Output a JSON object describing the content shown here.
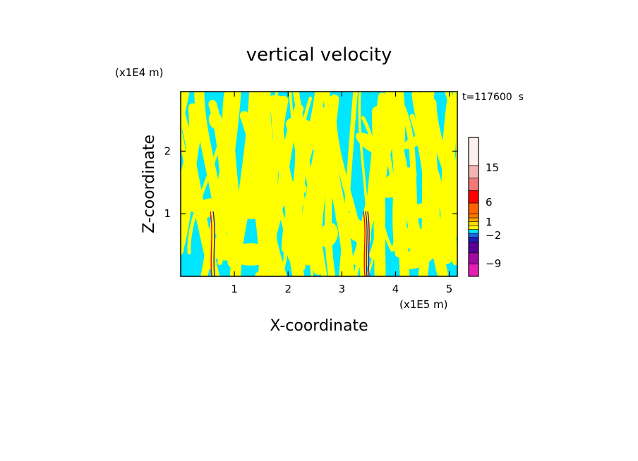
{
  "chart_data": {
    "type": "heatmap",
    "title": "vertical velocity",
    "xlabel": "X-coordinate",
    "ylabel": "Z-coordinate",
    "x_unit": "(x1E5 m)",
    "y_unit": "(x1E4 m)",
    "time_label": "t=117600  s",
    "xlim": [
      0,
      5.15
    ],
    "ylim": [
      0,
      2.95
    ],
    "x_ticks": [
      {
        "value": 1,
        "label": "1"
      },
      {
        "value": 2,
        "label": "2"
      },
      {
        "value": 3,
        "label": "3"
      },
      {
        "value": 4,
        "label": "4"
      },
      {
        "value": 5,
        "label": "5"
      }
    ],
    "y_ticks": [
      {
        "value": 1,
        "label": "1"
      },
      {
        "value": 2,
        "label": "2"
      }
    ],
    "legend_position": "right",
    "colorbar": [
      {
        "color": "#e61eb4"
      },
      {
        "color": "#a00aa0"
      },
      {
        "color": "#5a0096"
      },
      {
        "color": "#1e1eb4"
      },
      {
        "color": "#1e64e6"
      },
      {
        "color": "#00e6ff"
      },
      {
        "color": "#ffff00"
      },
      {
        "color": "#ffdc00"
      },
      {
        "color": "#ffaa00"
      },
      {
        "color": "#ff7800"
      },
      {
        "color": "#ff6400"
      },
      {
        "color": "#ff0000"
      },
      {
        "color": "#f07878"
      },
      {
        "color": "#f5b4b4"
      },
      {
        "color": "#fff0f0"
      }
    ],
    "colorbar_labels": [
      {
        "label": "-9",
        "value": -9
      },
      {
        "label": "-2",
        "value": -2
      },
      {
        "label": "1",
        "value": 1
      },
      {
        "label": "6",
        "value": 6
      },
      {
        "label": "15",
        "value": 15
      }
    ],
    "dominant_colors": {
      "negative": "#00e6ff",
      "positive": "#ffff00"
    }
  }
}
